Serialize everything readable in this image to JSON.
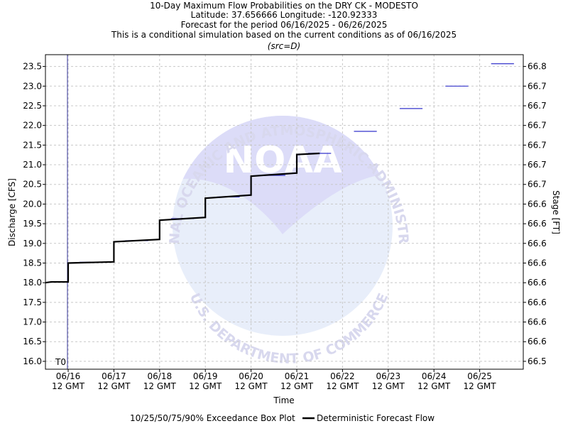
{
  "titles": [
    "10-Day Maximum Flow Probabilities on the DRY CK - MODESTO",
    "Latitude: 37.656666 Longitude: -120.92333",
    "Forecast for the period 06/16/2025 - 06/26/2025",
    "This is a conditional simulation based on the current conditions as of 06/16/2025"
  ],
  "source_note": "(src=D)",
  "t0_label": "T0",
  "colors": {
    "deterministic": "#000000",
    "exceedance": "#3333cc",
    "t0_line": "#333399",
    "watermark_fill": "#dcdcf8",
    "watermark_text": "#d8d8ee"
  },
  "watermark": {
    "logo_text": "NOAA",
    "arc_top": "NATIONAL OCEANIC AND ATMOSPHERIC ADMINISTRATION",
    "arc_bottom": "U.S. DEPARTMENT OF COMMERCE"
  },
  "chart_data": {
    "type": "line",
    "xlabel": "Time",
    "ylabel": "Discharge [CFS]",
    "y2label": "Stage [FT]",
    "ylim": [
      15.8,
      23.8
    ],
    "xlim": [
      "06/16 00 GMT",
      "06/26 12 GMT"
    ],
    "grid": true,
    "x_tick_labels": [
      [
        "06/16",
        "12 GMT"
      ],
      [
        "06/17",
        "12 GMT"
      ],
      [
        "06/18",
        "12 GMT"
      ],
      [
        "06/19",
        "12 GMT"
      ],
      [
        "06/20",
        "12 GMT"
      ],
      [
        "06/21",
        "12 GMT"
      ],
      [
        "06/22",
        "12 GMT"
      ],
      [
        "06/23",
        "12 GMT"
      ],
      [
        "06/24",
        "12 GMT"
      ],
      [
        "06/25",
        "12 GMT"
      ]
    ],
    "y_ticks": [
      16.0,
      16.5,
      17.0,
      17.5,
      18.0,
      18.5,
      19.0,
      19.5,
      20.0,
      20.5,
      21.0,
      21.5,
      22.0,
      22.5,
      23.0,
      23.5
    ],
    "y_tick_labels": [
      "16.0",
      "16.5",
      "17.0",
      "17.5",
      "18.0",
      "18.5",
      "19.0",
      "19.5",
      "20.0",
      "20.5",
      "21.0",
      "21.5",
      "22.0",
      "22.5",
      "23.0",
      "23.5"
    ],
    "y2_tick_labels": [
      "66.5",
      "66.6",
      "66.6",
      "66.6",
      "66.6",
      "66.6",
      "66.6",
      "66.6",
      "66.6",
      "66.7",
      "66.7",
      "66.7",
      "66.7",
      "66.7",
      "66.7",
      "66.8"
    ],
    "exceedance_segments": {
      "name": "10/25/50/75/90% Exceedance Box Plot",
      "segments": [
        {
          "x_start": "06/16 18:00",
          "x_end": "06/17 06:00",
          "y": 18.52
        },
        {
          "x_start": "06/17 18:00",
          "x_end": "06/18 06:00",
          "y": 19.07
        },
        {
          "x_start": "06/18 18:00",
          "x_end": "06/19 06:00",
          "y": 19.63
        },
        {
          "x_start": "06/19 18:00",
          "x_end": "06/20 06:00",
          "y": 20.18
        },
        {
          "x_start": "06/20 18:00",
          "x_end": "06/21 06:00",
          "y": 20.73
        },
        {
          "x_start": "06/21 18:00",
          "x_end": "06/22 06:00",
          "y": 21.29
        },
        {
          "x_start": "06/22 18:00",
          "x_end": "06/23 06:00",
          "y": 21.85
        },
        {
          "x_start": "06/23 18:00",
          "x_end": "06/24 06:00",
          "y": 22.43
        },
        {
          "x_start": "06/24 18:00",
          "x_end": "06/25 06:00",
          "y": 23.0
        },
        {
          "x_start": "06/25 18:00",
          "x_end": "06/26 06:00",
          "y": 23.57
        }
      ]
    },
    "deterministic": {
      "name": "Deterministic Forecast Flow",
      "points": [
        {
          "x": "06/16 00:00",
          "y": 18.0
        },
        {
          "x": "06/16 03:00",
          "y": 18.02
        },
        {
          "x": "06/16 12:00",
          "y": 18.02
        },
        {
          "x": "06/16 12:00",
          "y": 18.5
        },
        {
          "x": "06/17 12:00",
          "y": 18.53
        },
        {
          "x": "06/17 12:00",
          "y": 19.04
        },
        {
          "x": "06/18 12:00",
          "y": 19.1
        },
        {
          "x": "06/18 12:00",
          "y": 19.59
        },
        {
          "x": "06/19 12:00",
          "y": 19.66
        },
        {
          "x": "06/19 12:00",
          "y": 20.15
        },
        {
          "x": "06/20 12:00",
          "y": 20.23
        },
        {
          "x": "06/20 12:00",
          "y": 20.71
        },
        {
          "x": "06/21 12:00",
          "y": 20.79
        },
        {
          "x": "06/21 12:00",
          "y": 21.26
        },
        {
          "x": "06/22 00:00",
          "y": 21.29
        }
      ]
    }
  }
}
